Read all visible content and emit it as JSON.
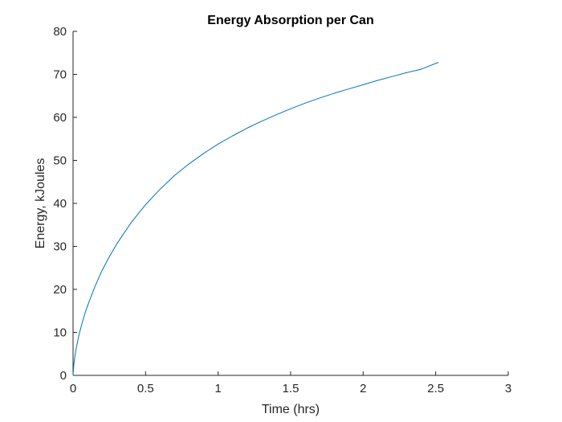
{
  "chart_data": {
    "type": "line",
    "title": "Energy Absorption per Can",
    "xlabel": "Time (hrs)",
    "ylabel": "Energy, kJoules",
    "xlim": [
      0,
      3
    ],
    "ylim": [
      0,
      80
    ],
    "xticks": [
      0,
      0.5,
      1,
      1.5,
      2,
      2.5,
      3
    ],
    "yticks": [
      0,
      10,
      20,
      30,
      40,
      50,
      60,
      70,
      80
    ],
    "xtick_labels": [
      "0",
      "0.5",
      "1",
      "1.5",
      "2",
      "2.5",
      "3"
    ],
    "ytick_labels": [
      "0",
      "10",
      "20",
      "30",
      "40",
      "50",
      "60",
      "70",
      "80"
    ],
    "grid": false,
    "legend": "none",
    "series": [
      {
        "color": "#0072BD",
        "x": [
          0,
          0.005,
          0.01,
          0.02,
          0.04,
          0.06,
          0.08,
          0.1,
          0.15,
          0.2,
          0.25,
          0.3,
          0.4,
          0.5,
          0.6,
          0.7,
          0.8,
          0.9,
          1.0,
          1.1,
          1.2,
          1.3,
          1.4,
          1.5,
          1.6,
          1.7,
          1.8,
          1.9,
          2.0,
          2.1,
          2.2,
          2.3,
          2.4,
          2.52
        ],
        "y": [
          0,
          2.4,
          3.8,
          6.0,
          9.3,
          11.9,
          14.2,
          16.2,
          20.6,
          24.4,
          27.6,
          30.5,
          35.5,
          39.7,
          43.3,
          46.5,
          49.2,
          51.6,
          53.8,
          55.7,
          57.5,
          59.1,
          60.6,
          62.0,
          63.3,
          64.5,
          65.6,
          66.6,
          67.6,
          68.6,
          69.5,
          70.4,
          71.2,
          72.8
        ]
      }
    ]
  }
}
